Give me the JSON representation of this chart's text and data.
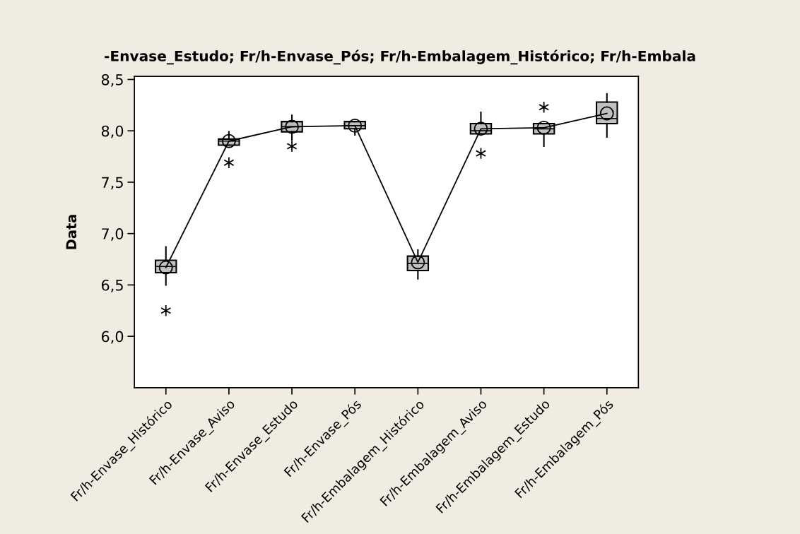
{
  "chart_data": {
    "type": "box",
    "title": "-Envase_Estudo; Fr/h-Envase_Pós; Fr/h-Embalagem_Histórico; Fr/h-Embala",
    "ylabel": "Data",
    "categories": [
      "Fr/h-Envase_Histórico",
      "Fr/h-Envase_Aviso",
      "Fr/h-Envase_Estudo",
      "Fr/h-Envase_Pós",
      "Fr/h-Embalagem_Histórico",
      "Fr/h-Embalagem_Aviso",
      "Fr/h-Embalagem_Estudo",
      "Fr/h-Embalagem_Pós"
    ],
    "color": "#c0c0c0",
    "boxes": [
      {
        "low": 6.5,
        "q1": 6.62,
        "median": 6.68,
        "q3": 6.74,
        "high": 6.87,
        "mean": 6.67,
        "outliers": [
          6.25
        ]
      },
      {
        "low": 7.86,
        "q1": 7.86,
        "median": 7.9,
        "q3": 7.92,
        "high": 7.99,
        "mean": 7.9,
        "outliers": [
          7.69
        ]
      },
      {
        "low": 7.91,
        "q1": 7.99,
        "median": 8.04,
        "q3": 8.09,
        "high": 8.15,
        "mean": 8.04,
        "outliers": [
          7.85
        ]
      },
      {
        "low": 7.96,
        "q1": 8.02,
        "median": 8.05,
        "q3": 8.09,
        "high": 8.09,
        "mean": 8.05
      },
      {
        "low": 6.56,
        "q1": 6.64,
        "median": 6.71,
        "q3": 6.78,
        "high": 6.84,
        "mean": 6.72
      },
      {
        "low": 7.97,
        "q1": 7.97,
        "median": 8.0,
        "q3": 8.07,
        "high": 8.18,
        "mean": 8.02,
        "outliers": [
          7.78
        ]
      },
      {
        "low": 7.85,
        "q1": 7.97,
        "median": 8.02,
        "q3": 8.07,
        "high": 8.07,
        "mean": 8.03,
        "outliers": [
          8.23
        ]
      },
      {
        "low": 7.94,
        "q1": 8.07,
        "median": 8.12,
        "q3": 8.28,
        "high": 8.36,
        "mean": 8.17
      }
    ],
    "series": [
      {
        "type": "line",
        "color": "#000000",
        "values": [
          6.67,
          7.9,
          8.04,
          8.05,
          6.72,
          8.02,
          8.03,
          8.17
        ]
      }
    ],
    "ylim": [
      5.5,
      8.53
    ],
    "yticks": [
      {
        "value": 6.0,
        "label": "6,0"
      },
      {
        "value": 6.5,
        "label": "6,5"
      },
      {
        "value": 7.0,
        "label": "7,0"
      },
      {
        "value": 7.5,
        "label": "7,5"
      },
      {
        "value": 8.0,
        "label": "8,0"
      },
      {
        "value": 8.5,
        "label": "8,5"
      }
    ],
    "grid": false,
    "legend": false
  }
}
